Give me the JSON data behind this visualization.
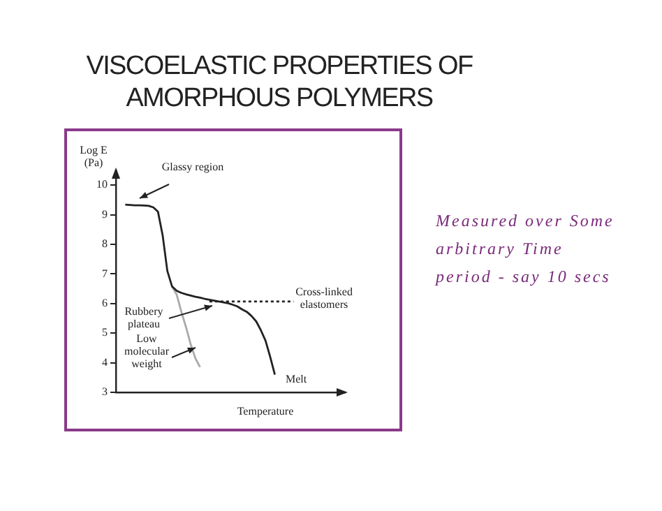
{
  "chart_data": {
    "type": "line",
    "title": "VISCOELASTIC PROPERTIES OF AMORPHOUS POLYMERS",
    "xlabel": "Temperature",
    "ylabel": "Log E (Pa)",
    "categories": [
      null,
      null,
      null,
      null,
      null,
      null,
      null,
      null,
      null,
      null,
      null,
      null,
      null,
      null,
      null,
      null,
      null,
      null,
      null,
      null,
      null,
      null,
      null,
      null,
      null,
      null,
      null,
      null,
      null,
      null,
      null,
      null,
      null,
      null,
      null,
      null,
      null,
      null,
      null,
      null,
      null,
      null,
      null,
      null,
      null,
      null,
      null,
      null,
      null,
      null
    ],
    "series": [
      {
        "color": "#222222",
        "line_style": "solid",
        "values": [
          null,
          null,
          9.34,
          9.33,
          9.32,
          9.32,
          9.31,
          9.3,
          9.25,
          9.1,
          8.3,
          7.1,
          6.58,
          6.43,
          6.36,
          6.31,
          6.27,
          6.23,
          6.2,
          6.16,
          6.13,
          6.1,
          6.07,
          6.04,
          6.01,
          5.96,
          5.9,
          5.8,
          5.72,
          5.58,
          5.4,
          5.1,
          4.75,
          4.2,
          3.6,
          null,
          null,
          null,
          null,
          null,
          null,
          null,
          null,
          null,
          null,
          null,
          null,
          null,
          null,
          null
        ]
      },
      {
        "color": "#aaaaaa",
        "line_style": "solid",
        "values": [
          null,
          null,
          null,
          null,
          null,
          null,
          null,
          null,
          null,
          null,
          null,
          null,
          6.58,
          6.3,
          5.72,
          5.2,
          4.62,
          4.15,
          3.85,
          null,
          null,
          null,
          null,
          null,
          null,
          null,
          null,
          null,
          null,
          null,
          null,
          null,
          null,
          null,
          null,
          null,
          null,
          null,
          null,
          null,
          null,
          null,
          null,
          null,
          null,
          null,
          null,
          null,
          null,
          null
        ]
      },
      {
        "color": "#222222",
        "line_style": "dotted",
        "values": [
          null,
          null,
          null,
          null,
          null,
          null,
          null,
          null,
          null,
          null,
          null,
          null,
          null,
          null,
          null,
          null,
          null,
          null,
          null,
          null,
          6.07,
          6.07,
          6.07,
          6.07,
          6.07,
          6.07,
          6.07,
          6.07,
          6.07,
          6.07,
          6.07,
          6.07,
          6.07,
          6.07,
          6.07,
          6.07,
          6.07,
          6.07,
          6.07,
          null,
          null,
          null,
          null,
          null,
          null,
          null,
          null,
          null,
          null,
          null
        ]
      }
    ],
    "ylim": [
      3,
      10.5
    ],
    "yticks": [
      3,
      4,
      5,
      6,
      7,
      8,
      9,
      10
    ],
    "marker": "none",
    "grid": false,
    "legend": false,
    "annotations": [
      "Glassy region",
      "Cross-linked elastomers",
      "Rubbery plateau",
      "Low molecular weight",
      "Melt",
      "Measured over Some arbitrary Time period - say 10 secs"
    ]
  }
}
